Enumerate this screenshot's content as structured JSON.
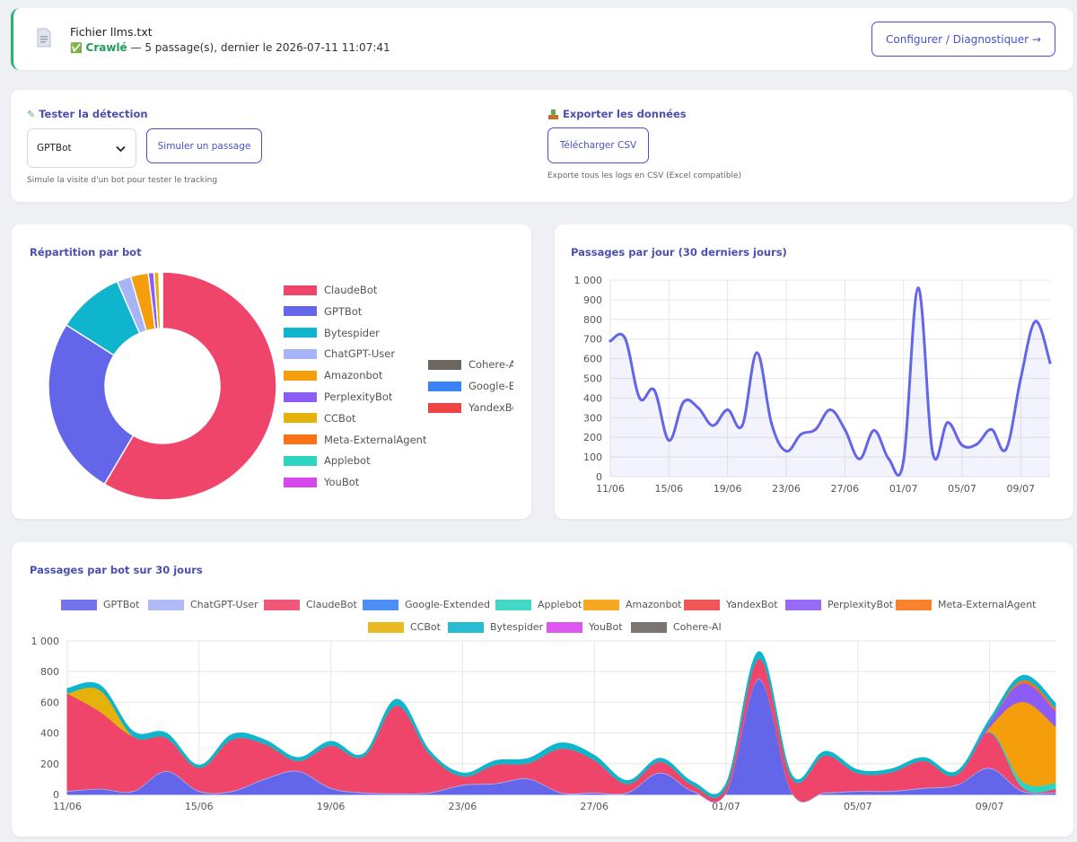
{
  "llms_card": {
    "title": "Fichier llms.txt",
    "status_icon": "✅",
    "status_word": "Crawlé",
    "status_detail": "— 5 passage(s), dernier le 2026-07-11 11:07:41",
    "configure_button": "Configurer / Diagnostiquer →",
    "file_icon": "document-icon",
    "accent": "#22b573"
  },
  "test": {
    "title": "Tester la détection",
    "icon": "pencil-icon",
    "selected_bot": "GPTBot",
    "simulate_button": "Simuler un passage",
    "hint": "Simule la visite d'un bot pour tester le tracking"
  },
  "export": {
    "title": "Exporter les données",
    "icon": "inbox-tray-icon",
    "download_button": "Télécharger CSV",
    "hint": "Exporte tous les logs en CSV (Excel compatible)"
  },
  "donut": {
    "title": "Répartition par bot",
    "legend": [
      {
        "label": "ClaudeBot",
        "color": "#f0456a"
      },
      {
        "label": "GPTBot",
        "color": "#6366e8"
      },
      {
        "label": "Bytespider",
        "color": "#0fb5cc"
      },
      {
        "label": "ChatGPT-User",
        "color": "#a8b4f8"
      },
      {
        "label": "Amazonbot",
        "color": "#f59e0b"
      },
      {
        "label": "PerplexityBot",
        "color": "#8b5cf6"
      },
      {
        "label": "CCBot",
        "color": "#e5b20b"
      },
      {
        "label": "Meta-ExternalAgent",
        "color": "#f97316"
      },
      {
        "label": "Applebot",
        "color": "#2dd4bf"
      },
      {
        "label": "YouBot",
        "color": "#d946ef"
      }
    ],
    "legend2": [
      {
        "label": "Cohere-AI",
        "color": "#6b6660"
      },
      {
        "label": "Google-Extended",
        "color": "#3b82f6"
      },
      {
        "label": "YandexBot",
        "color": "#ef4444"
      }
    ]
  },
  "line_card": {
    "title": "Passages par jour (30 derniers jours)"
  },
  "stack_card": {
    "title": "Passages par bot sur 30 jours"
  },
  "chart_data": [
    {
      "type": "pie",
      "title": "Répartition par bot",
      "labels": [
        "ClaudeBot",
        "GPTBot",
        "Bytespider",
        "ChatGPT-User",
        "Amazonbot",
        "PerplexityBot",
        "CCBot",
        "Meta-ExternalAgent",
        "Applebot",
        "YouBot",
        "Cohere-AI",
        "Google-Extended",
        "YandexBot"
      ],
      "values": [
        58.5,
        25.5,
        9.5,
        2.0,
        2.5,
        0.8,
        0.7,
        0.2,
        0.1,
        0.1,
        0.05,
        0.05,
        0.0
      ],
      "colors": [
        "#f0456a",
        "#6366e8",
        "#0fb5cc",
        "#a8b4f8",
        "#f59e0b",
        "#8b5cf6",
        "#e5b20b",
        "#f97316",
        "#2dd4bf",
        "#d946ef",
        "#6b6660",
        "#3b82f6",
        "#ef4444"
      ],
      "donut": true
    },
    {
      "type": "line",
      "title": "Passages par jour (30 derniers jours)",
      "x": [
        "11/06",
        "12/06",
        "13/06",
        "14/06",
        "15/06",
        "16/06",
        "17/06",
        "18/06",
        "19/06",
        "20/06",
        "21/06",
        "22/06",
        "23/06",
        "24/06",
        "25/06",
        "26/06",
        "27/06",
        "28/06",
        "29/06",
        "30/06",
        "01/07",
        "02/07",
        "03/07",
        "04/07",
        "05/07",
        "06/07",
        "07/07",
        "08/07",
        "09/07",
        "10/07",
        "11/07"
      ],
      "x_ticks": [
        "11/06",
        "15/06",
        "19/06",
        "23/06",
        "27/06",
        "01/07",
        "05/07",
        "09/07"
      ],
      "values": [
        690,
        705,
        400,
        440,
        185,
        380,
        350,
        260,
        340,
        260,
        630,
        270,
        130,
        215,
        240,
        340,
        240,
        90,
        235,
        90,
        80,
        960,
        120,
        275,
        160,
        165,
        240,
        140,
        500,
        790,
        580
      ],
      "ylim": [
        0,
        1000
      ],
      "yticks": [
        "0",
        "100",
        "200",
        "300",
        "400",
        "500",
        "600",
        "700",
        "800",
        "900",
        "1 000"
      ],
      "color": "#6366e8",
      "grid": true
    },
    {
      "type": "area",
      "title": "Passages par bot sur 30 jours",
      "stacked": true,
      "legend": "top",
      "x": [
        "11/06",
        "12/06",
        "13/06",
        "14/06",
        "15/06",
        "16/06",
        "17/06",
        "18/06",
        "19/06",
        "20/06",
        "21/06",
        "22/06",
        "23/06",
        "24/06",
        "25/06",
        "26/06",
        "27/06",
        "28/06",
        "29/06",
        "30/06",
        "01/07",
        "02/07",
        "03/07",
        "04/07",
        "05/07",
        "06/07",
        "07/07",
        "08/07",
        "09/07",
        "10/07",
        "11/07"
      ],
      "x_ticks": [
        "11/06",
        "15/06",
        "19/06",
        "23/06",
        "27/06",
        "01/07",
        "05/07",
        "09/07"
      ],
      "ylim": [
        0,
        1000
      ],
      "yticks": [
        "0",
        "200",
        "400",
        "600",
        "800",
        "1 000"
      ],
      "series": [
        {
          "name": "GPTBot",
          "color": "#6366e8",
          "values": [
            20,
            35,
            20,
            150,
            20,
            20,
            100,
            150,
            40,
            10,
            5,
            10,
            60,
            70,
            100,
            10,
            10,
            10,
            140,
            20,
            10,
            750,
            10,
            10,
            20,
            20,
            40,
            60,
            170,
            20,
            10
          ]
        },
        {
          "name": "ChatGPT-User",
          "color": "#a8b4f8",
          "values": [
            5,
            5,
            5,
            5,
            5,
            5,
            5,
            5,
            5,
            5,
            5,
            5,
            5,
            5,
            5,
            5,
            5,
            5,
            5,
            5,
            5,
            5,
            5,
            5,
            5,
            5,
            5,
            5,
            5,
            5,
            5
          ]
        },
        {
          "name": "ClaudeBot",
          "color": "#f0456a",
          "values": [
            635,
            500,
            355,
            215,
            150,
            335,
            225,
            65,
            275,
            235,
            570,
            250,
            55,
            120,
            100,
            285,
            210,
            55,
            70,
            35,
            35,
            130,
            90,
            240,
            115,
            120,
            175,
            65,
            230,
            20,
            20
          ]
        },
        {
          "name": "Google-Extended",
          "color": "#3b82f6",
          "values": [
            0,
            0,
            0,
            0,
            0,
            0,
            0,
            0,
            0,
            0,
            0,
            0,
            0,
            0,
            0,
            0,
            0,
            0,
            0,
            0,
            0,
            0,
            0,
            0,
            0,
            0,
            0,
            0,
            0,
            0,
            0
          ]
        },
        {
          "name": "Applebot",
          "color": "#2dd4bf",
          "values": [
            0,
            0,
            0,
            0,
            0,
            0,
            0,
            0,
            0,
            0,
            0,
            0,
            0,
            0,
            0,
            0,
            0,
            0,
            0,
            0,
            0,
            0,
            0,
            0,
            0,
            0,
            0,
            0,
            5,
            40,
            40
          ]
        },
        {
          "name": "Amazonbot",
          "color": "#f59e0b",
          "values": [
            0,
            0,
            0,
            0,
            0,
            0,
            0,
            0,
            0,
            0,
            0,
            0,
            0,
            0,
            0,
            0,
            0,
            0,
            0,
            0,
            0,
            0,
            0,
            0,
            0,
            0,
            0,
            0,
            30,
            520,
            370
          ]
        },
        {
          "name": "YandexBot",
          "color": "#ef4444",
          "values": [
            0,
            0,
            0,
            0,
            0,
            0,
            0,
            0,
            0,
            0,
            0,
            0,
            0,
            0,
            0,
            0,
            0,
            0,
            0,
            0,
            0,
            0,
            0,
            0,
            0,
            0,
            0,
            0,
            0,
            0,
            0
          ]
        },
        {
          "name": "PerplexityBot",
          "color": "#8b5cf6",
          "values": [
            0,
            0,
            0,
            0,
            0,
            0,
            0,
            0,
            0,
            0,
            0,
            0,
            0,
            0,
            0,
            0,
            0,
            0,
            0,
            0,
            0,
            0,
            0,
            0,
            0,
            0,
            0,
            0,
            30,
            120,
            100
          ]
        },
        {
          "name": "Meta-ExternalAgent",
          "color": "#f97316",
          "values": [
            0,
            0,
            0,
            0,
            0,
            0,
            0,
            0,
            0,
            0,
            0,
            0,
            0,
            0,
            0,
            0,
            0,
            0,
            0,
            0,
            0,
            0,
            0,
            0,
            0,
            0,
            0,
            0,
            0,
            20,
            20
          ]
        },
        {
          "name": "CCBot",
          "color": "#e5b20b",
          "values": [
            0,
            140,
            0,
            0,
            0,
            0,
            0,
            0,
            0,
            0,
            0,
            0,
            0,
            0,
            0,
            0,
            0,
            0,
            0,
            0,
            0,
            0,
            0,
            0,
            0,
            0,
            0,
            0,
            0,
            0,
            0
          ]
        },
        {
          "name": "Bytespider",
          "color": "#0fb5cc",
          "values": [
            30,
            30,
            30,
            30,
            15,
            30,
            25,
            20,
            25,
            15,
            40,
            20,
            20,
            25,
            30,
            35,
            30,
            20,
            20,
            20,
            20,
            45,
            20,
            25,
            20,
            20,
            20,
            20,
            20,
            30,
            30
          ]
        },
        {
          "name": "YouBot",
          "color": "#d946ef",
          "values": [
            0,
            0,
            0,
            0,
            0,
            0,
            0,
            0,
            0,
            0,
            0,
            0,
            0,
            0,
            0,
            0,
            0,
            0,
            0,
            0,
            0,
            0,
            0,
            0,
            0,
            0,
            0,
            0,
            0,
            0,
            0
          ]
        },
        {
          "name": "Cohere-AI",
          "color": "#6b6660",
          "values": [
            0,
            0,
            0,
            0,
            0,
            0,
            0,
            0,
            0,
            0,
            0,
            0,
            0,
            0,
            0,
            0,
            0,
            0,
            0,
            0,
            0,
            0,
            0,
            0,
            0,
            0,
            0,
            0,
            0,
            0,
            0
          ]
        }
      ]
    }
  ]
}
